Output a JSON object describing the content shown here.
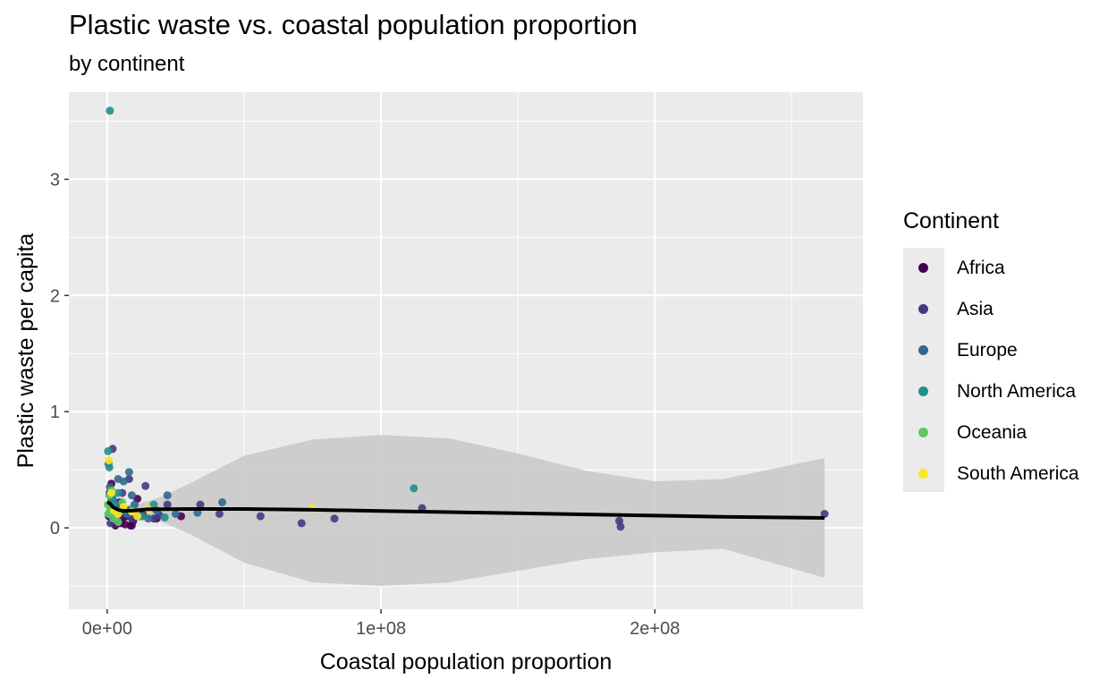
{
  "chart_data": {
    "type": "scatter",
    "title": "Plastic waste vs. coastal population proportion",
    "subtitle": "by continent",
    "xlabel": "Coastal population proportion",
    "ylabel": "Plastic waste per capita",
    "xlim": [
      -14000000,
      276000000
    ],
    "ylim": [
      -0.7,
      3.75
    ],
    "x_ticks": [
      0,
      100000000,
      200000000
    ],
    "x_tick_labels": [
      "0e+00",
      "1e+08",
      "2e+08"
    ],
    "y_ticks": [
      0,
      1,
      2,
      3
    ],
    "y_tick_labels": [
      "0",
      "1",
      "2",
      "3"
    ],
    "grid": true,
    "legend": {
      "title": "Continent",
      "position": "right",
      "entries": [
        "Africa",
        "Asia",
        "Europe",
        "North America",
        "Oceania",
        "South America"
      ]
    },
    "colors": {
      "Africa": "#440154",
      "Asia": "#443a83",
      "Europe": "#31688e",
      "North America": "#21908c",
      "Oceania": "#5dc863",
      "South America": "#fde725",
      "panel": "#ebebeb",
      "smooth_line": "#000000",
      "ribbon": "#c8c8c8"
    },
    "series": [
      {
        "name": "Africa",
        "points": [
          [
            900000,
            0.3
          ],
          [
            1500000,
            0.38
          ],
          [
            2500000,
            0.05
          ],
          [
            3500000,
            0.12
          ],
          [
            4500000,
            0.22
          ],
          [
            5500000,
            0.08
          ],
          [
            6500000,
            0.03
          ],
          [
            7500000,
            0.15
          ],
          [
            8500000,
            0.02
          ],
          [
            9500000,
            0.06
          ],
          [
            11000000,
            0.25
          ],
          [
            600000,
            0.1
          ],
          [
            1800000,
            0.18
          ],
          [
            3000000,
            0.02
          ],
          [
            5000000,
            0.04
          ],
          [
            7000000,
            0.1
          ],
          [
            9000000,
            0.02
          ],
          [
            13000000,
            0.12
          ],
          [
            18000000,
            0.08
          ],
          [
            27000000,
            0.1
          ]
        ]
      },
      {
        "name": "Asia",
        "points": [
          [
            1200000,
            0.04
          ],
          [
            2000000,
            0.68
          ],
          [
            3000000,
            0.1
          ],
          [
            5500000,
            0.3
          ],
          [
            7000000,
            0.12
          ],
          [
            9000000,
            0.08
          ],
          [
            14000000,
            0.36
          ],
          [
            17000000,
            0.08
          ],
          [
            22000000,
            0.2
          ],
          [
            34000000,
            0.2
          ],
          [
            41000000,
            0.12
          ],
          [
            56000000,
            0.1
          ],
          [
            71000000,
            0.04
          ],
          [
            83000000,
            0.08
          ],
          [
            115000000,
            0.17
          ],
          [
            187000000,
            0.06
          ],
          [
            187500000,
            0.01
          ],
          [
            262000000,
            0.12
          ],
          [
            8000000,
            0.42
          ],
          [
            11000000,
            0.1
          ],
          [
            19000000,
            0.11
          ]
        ]
      },
      {
        "name": "Europe",
        "points": [
          [
            1000000,
            0.35
          ],
          [
            2000000,
            0.25
          ],
          [
            3000000,
            0.2
          ],
          [
            4000000,
            0.42
          ],
          [
            5000000,
            0.18
          ],
          [
            6000000,
            0.4
          ],
          [
            7000000,
            0.12
          ],
          [
            8000000,
            0.48
          ],
          [
            9000000,
            0.28
          ],
          [
            10000000,
            0.2
          ],
          [
            12000000,
            0.1
          ],
          [
            15000000,
            0.08
          ],
          [
            18000000,
            0.15
          ],
          [
            22000000,
            0.28
          ],
          [
            25000000,
            0.12
          ],
          [
            33000000,
            0.13
          ],
          [
            42000000,
            0.22
          ],
          [
            500000,
            0.55
          ],
          [
            1500000,
            0.3
          ]
        ]
      },
      {
        "name": "North America",
        "points": [
          [
            1000000,
            3.59
          ],
          [
            300000,
            0.66
          ],
          [
            800000,
            0.52
          ],
          [
            1500000,
            0.25
          ],
          [
            2500000,
            0.2
          ],
          [
            4000000,
            0.3
          ],
          [
            6000000,
            0.15
          ],
          [
            9000000,
            0.16
          ],
          [
            13000000,
            0.1
          ],
          [
            17000000,
            0.2
          ],
          [
            21000000,
            0.09
          ],
          [
            112000000,
            0.34
          ],
          [
            500000,
            0.12
          ]
        ]
      },
      {
        "name": "Oceania",
        "points": [
          [
            200000,
            0.2
          ],
          [
            400000,
            0.12
          ],
          [
            700000,
            0.28
          ],
          [
            1100000,
            0.15
          ],
          [
            1600000,
            0.32
          ],
          [
            2200000,
            0.08
          ],
          [
            3000000,
            0.1
          ],
          [
            4000000,
            0.05
          ],
          [
            5500000,
            0.22
          ]
        ]
      },
      {
        "name": "South America",
        "points": [
          [
            600000,
            0.58
          ],
          [
            1500000,
            0.3
          ],
          [
            2500000,
            0.15
          ],
          [
            4000000,
            0.12
          ],
          [
            6000000,
            0.18
          ],
          [
            9000000,
            0.14
          ],
          [
            11000000,
            0.1
          ],
          [
            15000000,
            0.16
          ],
          [
            75000000,
            0.17
          ]
        ]
      }
    ],
    "smooth": {
      "x": [
        0,
        1000000,
        2000000,
        4000000,
        6000000,
        10000000,
        15000000,
        20000000,
        30000000,
        50000000,
        75000000,
        100000000,
        125000000,
        150000000,
        175000000,
        200000000,
        225000000,
        262000000
      ],
      "y": [
        0.22,
        0.21,
        0.18,
        0.155,
        0.145,
        0.15,
        0.16,
        0.16,
        0.162,
        0.162,
        0.155,
        0.145,
        0.135,
        0.125,
        0.115,
        0.105,
        0.095,
        0.085
      ],
      "lower": [
        0.12,
        0.15,
        0.13,
        0.11,
        0.1,
        0.1,
        0.09,
        0.05,
        -0.05,
        -0.3,
        -0.47,
        -0.5,
        -0.47,
        -0.37,
        -0.27,
        -0.21,
        -0.18,
        -0.43
      ],
      "upper": [
        0.3,
        0.28,
        0.24,
        0.21,
        0.2,
        0.2,
        0.23,
        0.27,
        0.38,
        0.62,
        0.76,
        0.8,
        0.77,
        0.64,
        0.49,
        0.4,
        0.42,
        0.6
      ]
    }
  }
}
